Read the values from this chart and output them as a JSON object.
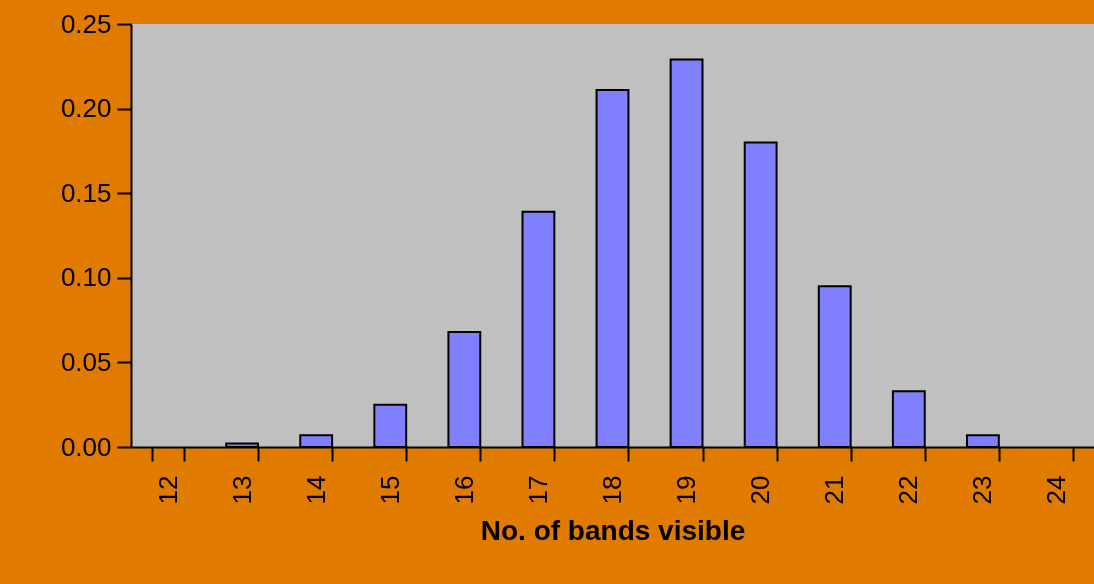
{
  "chart_data": {
    "type": "bar",
    "xlabel": "No. of bands visible",
    "categories": [
      "12",
      "13",
      "14",
      "15",
      "16",
      "17",
      "18",
      "19",
      "20",
      "21",
      "22",
      "23",
      "24"
    ],
    "values": [
      null,
      0.002,
      0.007,
      0.025,
      0.068,
      0.139,
      0.211,
      0.229,
      0.18,
      0.095,
      0.033,
      0.007,
      null
    ],
    "color": "#8080ff",
    "ylim": [
      0,
      0.25
    ],
    "yticks": [
      {
        "value": 0,
        "label": "0.00"
      },
      {
        "value": 0.05,
        "label": "0.05"
      },
      {
        "value": 0.1,
        "label": "0.10"
      },
      {
        "value": 0.15,
        "label": "0.15"
      },
      {
        "value": 0.2,
        "label": "0.20"
      },
      {
        "value": 0.25,
        "label": "0.25"
      }
    ],
    "grid": false
  }
}
